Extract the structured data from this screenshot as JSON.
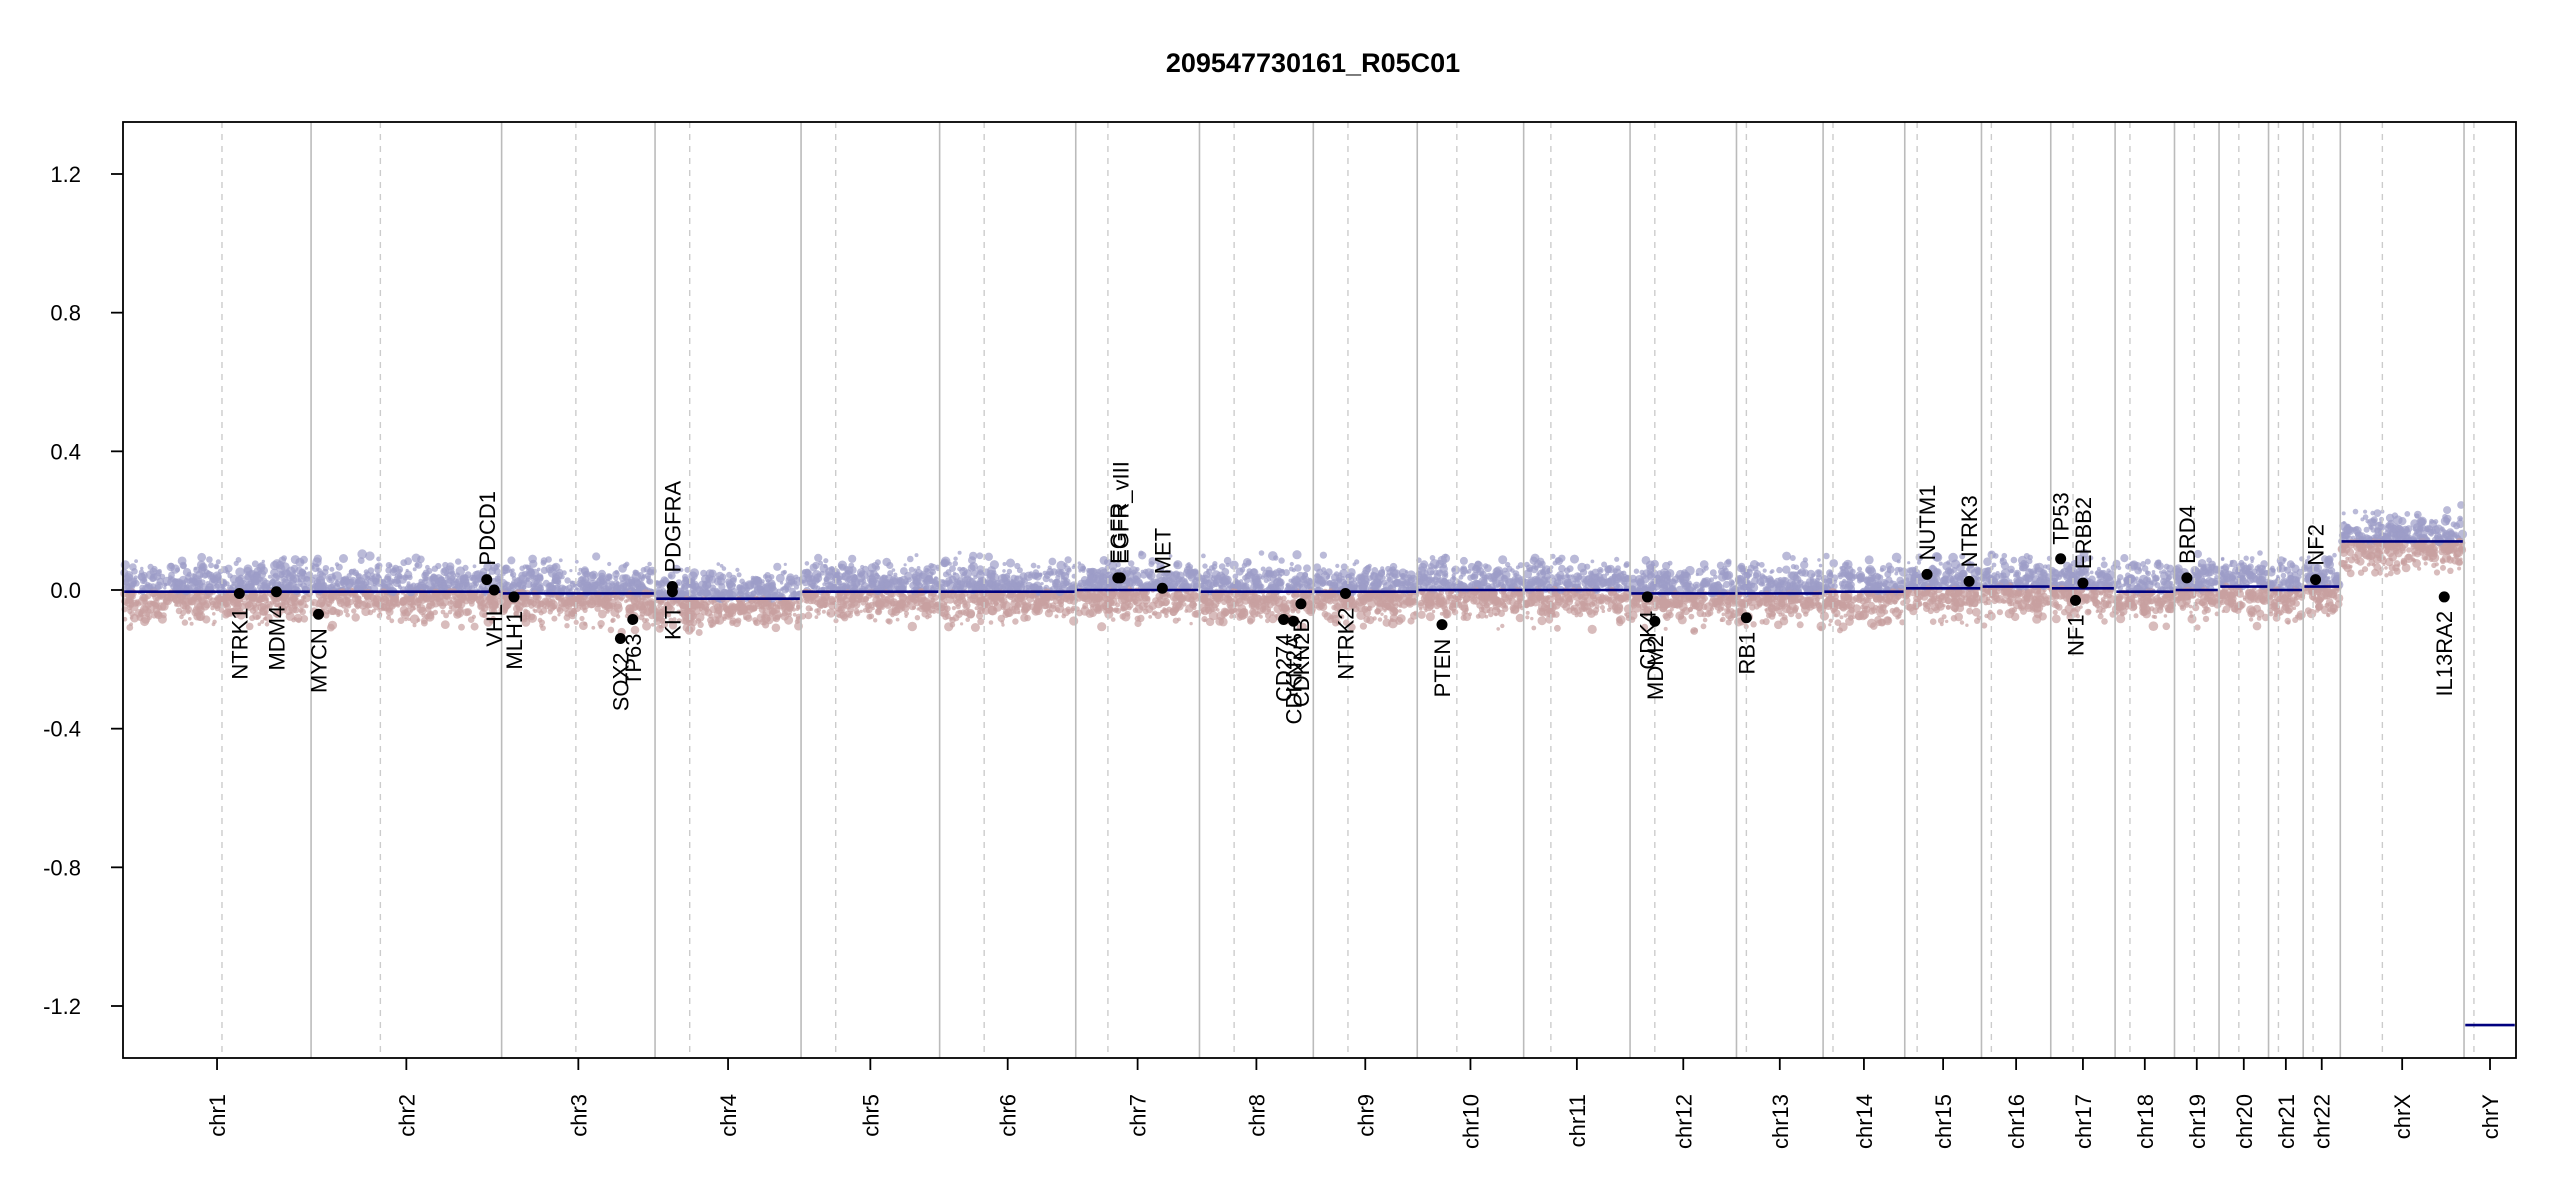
{
  "chart_data": {
    "type": "scatter",
    "title": "209547730161_R05C01",
    "ylim": [
      -1.35,
      1.35
    ],
    "y_ticks": [
      1.2,
      0.8,
      0.4,
      0.0,
      -0.4,
      -0.8,
      -1.2
    ],
    "y_tick_labels": [
      "1.2",
      "0.8",
      "0.4",
      "0.0",
      "-0.4",
      "-0.8",
      "-1.2"
    ],
    "grid": false,
    "colors": {
      "baseline": "#00007f",
      "gain": "#9c9cc8",
      "loss": "#c8a0a0",
      "point": "#000000",
      "separator": "#bbbbbb",
      "centromere": "#cccccc"
    },
    "chromosomes": [
      {
        "name": "chr1",
        "start": 0.0,
        "end": 7.6,
        "segment": -0.005
      },
      {
        "name": "chr2",
        "start": 7.6,
        "end": 15.3,
        "segment": -0.005
      },
      {
        "name": "chr3",
        "start": 15.3,
        "end": 21.5,
        "segment": -0.01
      },
      {
        "name": "chr4",
        "start": 21.5,
        "end": 27.4,
        "segment": -0.025
      },
      {
        "name": "chr5",
        "start": 27.4,
        "end": 33.0,
        "segment": -0.005
      },
      {
        "name": "chr6",
        "start": 33.0,
        "end": 38.5,
        "segment": -0.005
      },
      {
        "name": "chr7",
        "start": 38.5,
        "end": 43.5,
        "segment": 0.0
      },
      {
        "name": "chr8",
        "start": 43.5,
        "end": 48.1,
        "segment": -0.005
      },
      {
        "name": "chr9",
        "start": 48.1,
        "end": 52.3,
        "segment": -0.005
      },
      {
        "name": "chr10",
        "start": 52.3,
        "end": 56.6,
        "segment": 0.0
      },
      {
        "name": "chr11",
        "start": 56.6,
        "end": 60.9,
        "segment": 0.0
      },
      {
        "name": "chr12",
        "start": 60.9,
        "end": 65.2,
        "segment": -0.01
      },
      {
        "name": "chr13",
        "start": 65.2,
        "end": 68.7,
        "segment": -0.01
      },
      {
        "name": "chr14",
        "start": 68.7,
        "end": 72.0,
        "segment": -0.005
      },
      {
        "name": "chr15",
        "start": 72.0,
        "end": 75.1,
        "segment": 0.005
      },
      {
        "name": "chr16",
        "start": 75.1,
        "end": 77.9,
        "segment": 0.01
      },
      {
        "name": "chr17",
        "start": 77.9,
        "end": 80.5,
        "segment": 0.005
      },
      {
        "name": "chr18",
        "start": 80.5,
        "end": 82.9,
        "segment": -0.005
      },
      {
        "name": "chr19",
        "start": 82.9,
        "end": 84.7,
        "segment": 0.0
      },
      {
        "name": "chr20",
        "start": 84.7,
        "end": 86.7,
        "segment": 0.01
      },
      {
        "name": "chr21",
        "start": 86.7,
        "end": 88.1,
        "segment": 0.0
      },
      {
        "name": "chr22",
        "start": 88.1,
        "end": 89.6,
        "segment": 0.01
      },
      {
        "name": "chrX",
        "start": 89.6,
        "end": 94.6,
        "segment": 0.14
      },
      {
        "name": "chrY",
        "start": 94.6,
        "end": 96.7,
        "segment": -1.255
      }
    ],
    "centromeres": [
      4.0,
      10.4,
      18.3,
      22.9,
      28.8,
      34.8,
      39.8,
      44.9,
      49.5,
      53.9,
      57.7,
      61.9,
      65.6,
      69.1,
      72.5,
      75.5,
      78.8,
      81.1,
      83.7,
      85.5,
      87.1,
      88.5,
      91.3,
      95.0
    ],
    "genes": [
      {
        "name": "NTRK1",
        "x": 4.7,
        "y": -0.01,
        "label_side": "below"
      },
      {
        "name": "MDM4",
        "x": 6.2,
        "y": -0.005,
        "label_side": "below"
      },
      {
        "name": "MYCN",
        "x": 7.9,
        "y": -0.07,
        "label_side": "below"
      },
      {
        "name": "PDCD1",
        "x": 14.7,
        "y": 0.03,
        "label_side": "above"
      },
      {
        "name": "VHL",
        "x": 15.0,
        "y": 0.0,
        "label_side": "below"
      },
      {
        "name": "MLH1",
        "x": 15.8,
        "y": -0.02,
        "label_side": "below"
      },
      {
        "name": "SOX2",
        "x": 20.1,
        "y": -0.14,
        "label_side": "below"
      },
      {
        "name": "TP63",
        "x": 20.6,
        "y": -0.085,
        "label_side": "below"
      },
      {
        "name": "PDGFRA",
        "x": 22.2,
        "y": 0.01,
        "label_side": "above"
      },
      {
        "name": "KIT",
        "x": 22.2,
        "y": -0.005,
        "label_side": "below"
      },
      {
        "name": "EGFR",
        "x": 40.2,
        "y": 0.035,
        "label_side": "above"
      },
      {
        "name": "EGFR_vIII",
        "x": 40.3,
        "y": 0.035,
        "label_side": "above"
      },
      {
        "name": "MET",
        "x": 42.0,
        "y": 0.005,
        "label_side": "above"
      },
      {
        "name": "CD274",
        "x": 46.9,
        "y": -0.085,
        "label_side": "below"
      },
      {
        "name": "CDKN2A",
        "x": 47.3,
        "y": -0.09,
        "label_side": "below"
      },
      {
        "name": "CDKN2B",
        "x": 47.6,
        "y": -0.04,
        "label_side": "below"
      },
      {
        "name": "NTRK2",
        "x": 49.4,
        "y": -0.01,
        "label_side": "below"
      },
      {
        "name": "PTEN",
        "x": 53.3,
        "y": -0.1,
        "label_side": "below"
      },
      {
        "name": "CDK4",
        "x": 61.6,
        "y": -0.02,
        "label_side": "below"
      },
      {
        "name": "MDM2",
        "x": 61.9,
        "y": -0.09,
        "label_side": "below"
      },
      {
        "name": "RB1",
        "x": 65.6,
        "y": -0.08,
        "label_side": "below"
      },
      {
        "name": "NUTM1",
        "x": 72.9,
        "y": 0.045,
        "label_side": "above"
      },
      {
        "name": "NTRK3",
        "x": 74.6,
        "y": 0.025,
        "label_side": "above"
      },
      {
        "name": "TP53",
        "x": 78.3,
        "y": 0.09,
        "label_side": "above"
      },
      {
        "name": "NF1",
        "x": 78.9,
        "y": -0.03,
        "label_side": "below"
      },
      {
        "name": "ERBB2",
        "x": 79.2,
        "y": 0.02,
        "label_side": "above"
      },
      {
        "name": "BRD4",
        "x": 83.4,
        "y": 0.035,
        "label_side": "above"
      },
      {
        "name": "NF2",
        "x": 88.6,
        "y": 0.03,
        "label_side": "above"
      },
      {
        "name": "IL13RA2",
        "x": 93.8,
        "y": -0.02,
        "label_side": "below"
      }
    ]
  }
}
